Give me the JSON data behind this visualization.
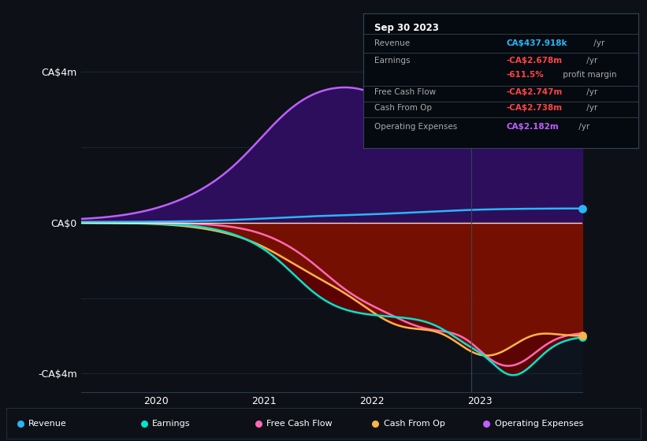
{
  "bg_color": "#0d1117",
  "plot_bg_color": "#0d1117",
  "fig_width": 8.21,
  "fig_height": 5.6,
  "dpi": 100,
  "ylim": [
    -4.5,
    4.5
  ],
  "colors": {
    "revenue": "#29b6f6",
    "earnings": "#00e5cc",
    "free_cash_flow": "#ff69b4",
    "cash_from_op": "#ffb347",
    "operating_expenses": "#bf5fff"
  },
  "legend_items": [
    "Revenue",
    "Earnings",
    "Free Cash Flow",
    "Cash From Op",
    "Operating Expenses"
  ],
  "info_box": {
    "title": "Sep 30 2023",
    "rows": [
      {
        "label": "Revenue",
        "value": "CA$437.918k",
        "value_color": "#29b6f6",
        "suffix": " /yr"
      },
      {
        "label": "Earnings",
        "value": "-CA$2.678m",
        "value_color": "#ff4444",
        "suffix": " /yr"
      },
      {
        "label": "",
        "value": "-611.5%",
        "value_color": "#ff4444",
        "suffix": " profit margin"
      },
      {
        "label": "Free Cash Flow",
        "value": "-CA$2.747m",
        "value_color": "#ff4444",
        "suffix": " /yr"
      },
      {
        "label": "Cash From Op",
        "value": "-CA$2.738m",
        "value_color": "#ff4444",
        "suffix": " /yr"
      },
      {
        "label": "Operating Expenses",
        "value": "CA$2.182m",
        "value_color": "#bf5fff",
        "suffix": " /yr"
      }
    ]
  }
}
